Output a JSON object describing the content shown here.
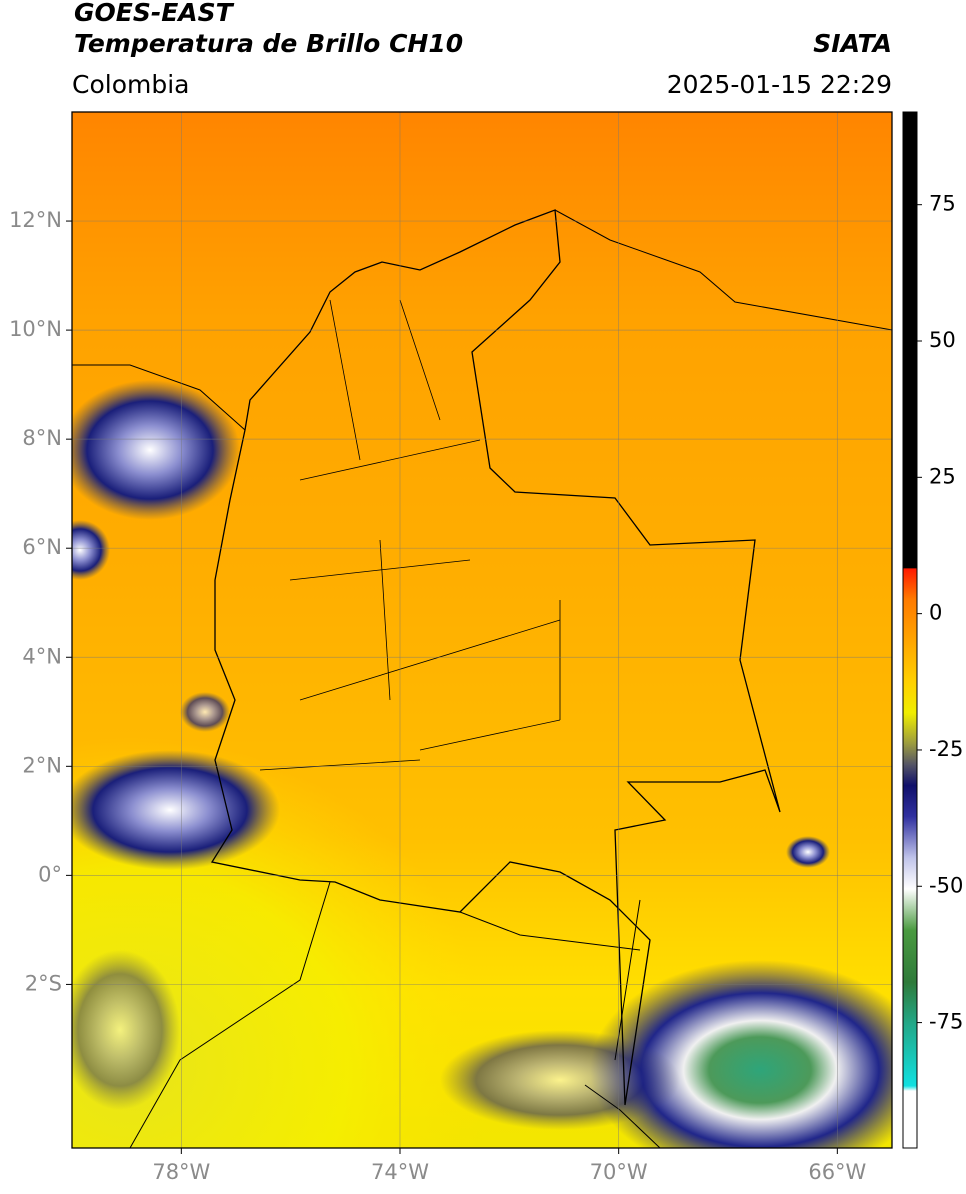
{
  "header": {
    "title": "GOES-EAST",
    "subtitle": "Temperatura de Brillo CH10",
    "source": "SIATA",
    "region": "Colombia",
    "datetime": "2025-01-15 22:29"
  },
  "map": {
    "xlim": [
      -80,
      -65
    ],
    "ylim": [
      -5,
      14
    ],
    "xticks": [
      {
        "value": -78,
        "label": "78°W"
      },
      {
        "value": -74,
        "label": "74°W"
      },
      {
        "value": -70,
        "label": "70°W"
      },
      {
        "value": -66,
        "label": "66°W"
      }
    ],
    "yticks": [
      {
        "value": 12,
        "label": "12°N"
      },
      {
        "value": 10,
        "label": "10°N"
      },
      {
        "value": 8,
        "label": "8°N"
      },
      {
        "value": 6,
        "label": "6°N"
      },
      {
        "value": 4,
        "label": "4°N"
      },
      {
        "value": 2,
        "label": "2°N"
      },
      {
        "value": 0,
        "label": "0°"
      },
      {
        "value": -2,
        "label": "2°S"
      }
    ],
    "grid": true
  },
  "colorbar": {
    "lim": [
      -98,
      92
    ],
    "ticks": [
      75,
      50,
      25,
      0,
      -25,
      -50,
      -75
    ]
  }
}
